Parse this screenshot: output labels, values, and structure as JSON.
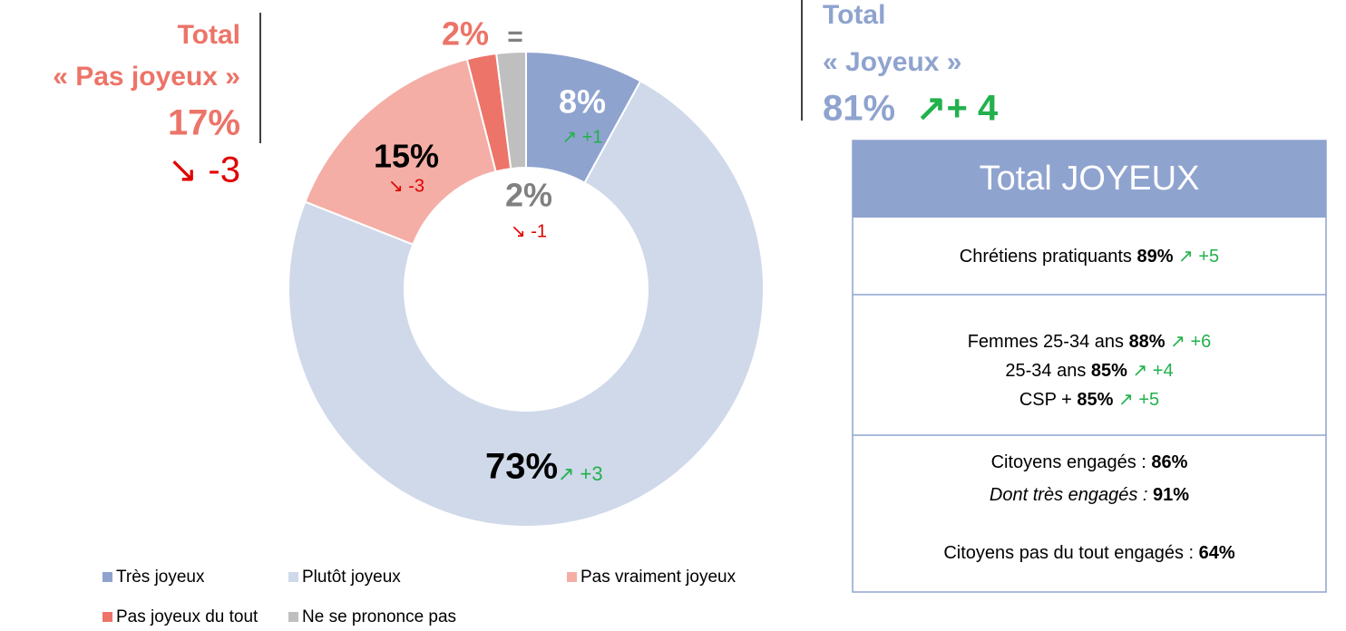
{
  "chart_data": {
    "type": "donut",
    "categories": [
      "Très joyeux",
      "Plutôt joyeux",
      "Pas vraiment joyeux",
      "Pas joyeux du tout",
      "Ne se prononce pas"
    ],
    "values": [
      8,
      73,
      15,
      2,
      2
    ],
    "value_labels": [
      "8%",
      "73%",
      "15%",
      "2%",
      "2%"
    ],
    "changes": [
      "↗ +1",
      "↗ +3",
      "↘ -3",
      "=",
      "↘ -1"
    ],
    "colors": [
      "#8fa3cf",
      "#cfd9ea",
      "#f4aea6",
      "#ec7468",
      "#bfbfbf"
    ]
  },
  "annotations": {
    "left": {
      "line1": "Total",
      "line2": "« Pas joyeux »",
      "value": "17%",
      "change": "↘ -3"
    },
    "right": {
      "line1": "Total",
      "line2": "« Joyeux »",
      "value": "81%",
      "change": "↗+ 4"
    }
  },
  "box": {
    "title": "Total JOYEUX",
    "sections": [
      [
        {
          "label": "Chrétiens pratiquants ",
          "value": "89%",
          "change": " ↗ +5"
        }
      ],
      [
        {
          "label": "Femmes 25-34 ans ",
          "value": "88%",
          "change": " ↗ +6"
        },
        {
          "label": "25-34 ans ",
          "value": "85%",
          "change": " ↗ +4"
        },
        {
          "label": "CSP + ",
          "value": "85%",
          "change": " ↗ +5"
        }
      ],
      [
        {
          "label": "Citoyens engagés : ",
          "value": "86%"
        },
        {
          "label": "Dont très engagés : ",
          "value": "91%",
          "italic": true
        }
      ],
      [
        {
          "label": "Citoyens pas du tout engagés : ",
          "value": "64%"
        }
      ]
    ]
  }
}
